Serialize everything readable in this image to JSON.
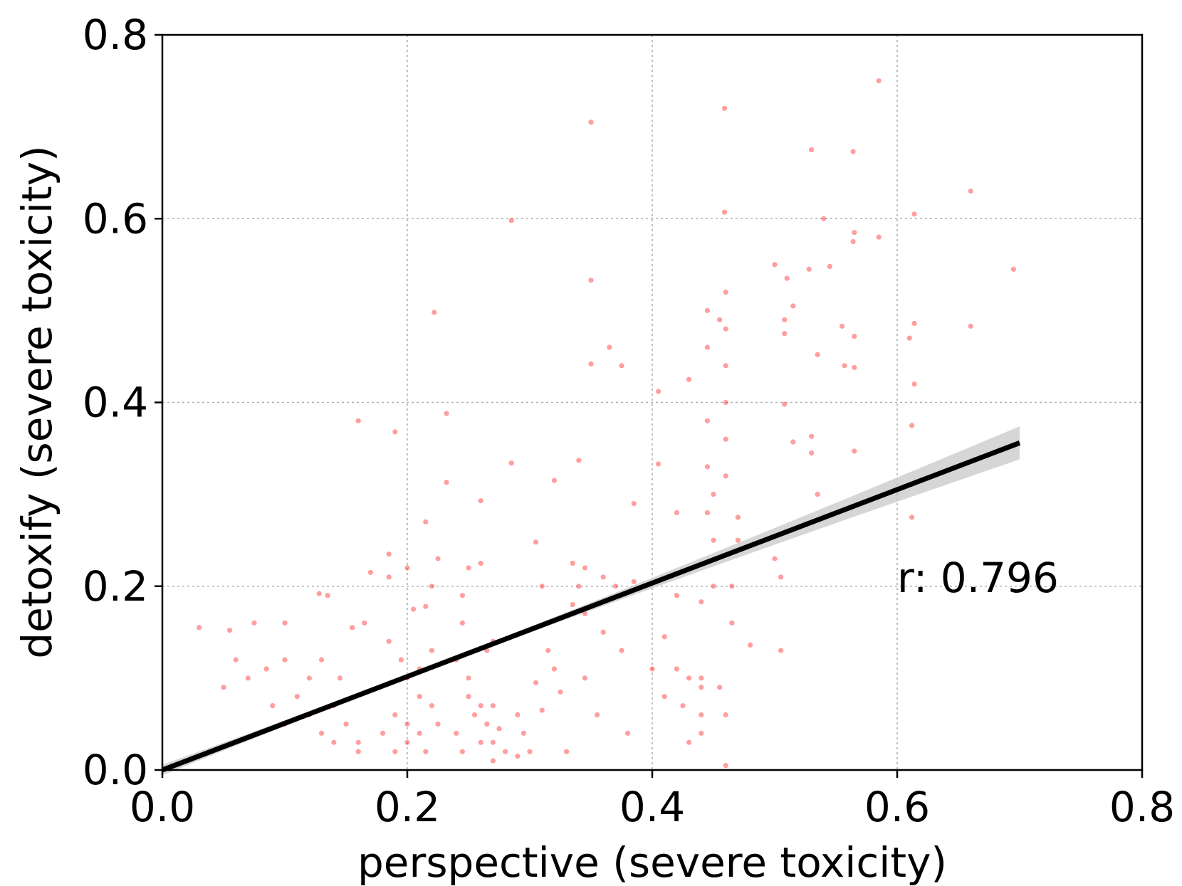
{
  "chart_data": {
    "type": "scatter",
    "title": "",
    "xlabel": "perspective (severe toxicity)",
    "ylabel": "detoxify (severe toxicity)",
    "xlim": [
      0.0,
      0.8
    ],
    "ylim": [
      0.0,
      0.8
    ],
    "xticks": [
      "0.0",
      "0.2",
      "0.4",
      "0.6",
      "0.8"
    ],
    "yticks": [
      "0.0",
      "0.2",
      "0.4",
      "0.6",
      "0.8"
    ],
    "grid": true,
    "point_color": "#ff0000",
    "fit_line_color": "#000000",
    "confidence_band_color": "#c8c8c8",
    "annotation": {
      "text": "r: 0.796",
      "x": 0.6,
      "y": 0.2
    },
    "regression": {
      "x": [
        0.0,
        0.7
      ],
      "y": [
        0.0,
        0.356
      ],
      "ci_halfwidth_at_end": 0.016
    },
    "series": [
      {
        "points": [
          [
            0.585,
            0.75
          ],
          [
            0.459,
            0.72
          ],
          [
            0.35,
            0.705
          ],
          [
            0.285,
            0.598
          ],
          [
            0.66,
            0.63
          ],
          [
            0.614,
            0.605
          ],
          [
            0.459,
            0.607
          ],
          [
            0.53,
            0.675
          ],
          [
            0.564,
            0.673
          ],
          [
            0.54,
            0.6
          ],
          [
            0.565,
            0.585
          ],
          [
            0.585,
            0.58
          ],
          [
            0.564,
            0.575
          ],
          [
            0.695,
            0.545
          ],
          [
            0.5,
            0.55
          ],
          [
            0.51,
            0.535
          ],
          [
            0.528,
            0.545
          ],
          [
            0.545,
            0.548
          ],
          [
            0.35,
            0.533
          ],
          [
            0.222,
            0.498
          ],
          [
            0.515,
            0.505
          ],
          [
            0.508,
            0.49
          ],
          [
            0.508,
            0.475
          ],
          [
            0.614,
            0.486
          ],
          [
            0.66,
            0.483
          ],
          [
            0.555,
            0.483
          ],
          [
            0.565,
            0.472
          ],
          [
            0.61,
            0.47
          ],
          [
            0.535,
            0.452
          ],
          [
            0.557,
            0.44
          ],
          [
            0.565,
            0.438
          ],
          [
            0.365,
            0.46
          ],
          [
            0.375,
            0.44
          ],
          [
            0.35,
            0.442
          ],
          [
            0.43,
            0.425
          ],
          [
            0.405,
            0.412
          ],
          [
            0.614,
            0.42
          ],
          [
            0.16,
            0.38
          ],
          [
            0.19,
            0.368
          ],
          [
            0.232,
            0.388
          ],
          [
            0.508,
            0.398
          ],
          [
            0.515,
            0.357
          ],
          [
            0.612,
            0.375
          ],
          [
            0.53,
            0.363
          ],
          [
            0.565,
            0.347
          ],
          [
            0.53,
            0.345
          ],
          [
            0.405,
            0.333
          ],
          [
            0.285,
            0.334
          ],
          [
            0.34,
            0.337
          ],
          [
            0.32,
            0.315
          ],
          [
            0.232,
            0.313
          ],
          [
            0.535,
            0.3
          ],
          [
            0.612,
            0.275
          ],
          [
            0.26,
            0.293
          ],
          [
            0.385,
            0.29
          ],
          [
            0.42,
            0.28
          ],
          [
            0.47,
            0.275
          ],
          [
            0.215,
            0.27
          ],
          [
            0.305,
            0.248
          ],
          [
            0.335,
            0.225
          ],
          [
            0.225,
            0.23
          ],
          [
            0.26,
            0.225
          ],
          [
            0.25,
            0.22
          ],
          [
            0.2,
            0.22
          ],
          [
            0.185,
            0.235
          ],
          [
            0.17,
            0.215
          ],
          [
            0.185,
            0.21
          ],
          [
            0.22,
            0.2
          ],
          [
            0.245,
            0.19
          ],
          [
            0.205,
            0.175
          ],
          [
            0.215,
            0.178
          ],
          [
            0.135,
            0.19
          ],
          [
            0.128,
            0.192
          ],
          [
            0.155,
            0.155
          ],
          [
            0.165,
            0.16
          ],
          [
            0.075,
            0.16
          ],
          [
            0.1,
            0.16
          ],
          [
            0.055,
            0.152
          ],
          [
            0.03,
            0.155
          ],
          [
            0.245,
            0.16
          ],
          [
            0.27,
            0.14
          ],
          [
            0.265,
            0.13
          ],
          [
            0.385,
            0.205
          ],
          [
            0.42,
            0.19
          ],
          [
            0.44,
            0.183
          ],
          [
            0.48,
            0.136
          ],
          [
            0.505,
            0.13
          ],
          [
            0.41,
            0.145
          ],
          [
            0.42,
            0.11
          ],
          [
            0.425,
            0.07
          ],
          [
            0.41,
            0.08
          ],
          [
            0.4,
            0.11
          ],
          [
            0.43,
            0.1
          ],
          [
            0.44,
            0.09
          ],
          [
            0.38,
            0.04
          ],
          [
            0.43,
            0.03
          ],
          [
            0.44,
            0.04
          ],
          [
            0.455,
            0.09
          ],
          [
            0.44,
            0.1
          ],
          [
            0.5,
            0.23
          ],
          [
            0.505,
            0.21
          ],
          [
            0.33,
            0.02
          ],
          [
            0.305,
            0.095
          ],
          [
            0.31,
            0.065
          ],
          [
            0.325,
            0.085
          ],
          [
            0.295,
            0.04
          ],
          [
            0.27,
            0.03
          ],
          [
            0.28,
            0.02
          ],
          [
            0.29,
            0.015
          ],
          [
            0.255,
            0.06
          ],
          [
            0.26,
            0.03
          ],
          [
            0.245,
            0.02
          ],
          [
            0.31,
            0.2
          ],
          [
            0.335,
            0.18
          ],
          [
            0.315,
            0.13
          ],
          [
            0.32,
            0.11
          ],
          [
            0.29,
            0.06
          ],
          [
            0.275,
            0.045
          ],
          [
            0.3,
            0.02
          ],
          [
            0.265,
            0.05
          ],
          [
            0.345,
            0.22
          ],
          [
            0.345,
            0.17
          ],
          [
            0.345,
            0.1
          ],
          [
            0.355,
            0.06
          ],
          [
            0.34,
            0.2
          ],
          [
            0.36,
            0.21
          ],
          [
            0.37,
            0.2
          ],
          [
            0.36,
            0.15
          ],
          [
            0.375,
            0.13
          ],
          [
            0.45,
            0.3
          ],
          [
            0.45,
            0.25
          ],
          [
            0.45,
            0.2
          ],
          [
            0.445,
            0.33
          ],
          [
            0.445,
            0.28
          ],
          [
            0.465,
            0.2
          ],
          [
            0.465,
            0.16
          ],
          [
            0.47,
            0.25
          ],
          [
            0.46,
            0.32
          ],
          [
            0.46,
            0.36
          ],
          [
            0.46,
            0.4
          ],
          [
            0.445,
            0.38
          ],
          [
            0.46,
            0.44
          ],
          [
            0.445,
            0.46
          ],
          [
            0.46,
            0.48
          ],
          [
            0.445,
            0.5
          ],
          [
            0.46,
            0.52
          ],
          [
            0.455,
            0.49
          ],
          [
            0.44,
            0.06
          ],
          [
            0.46,
            0.06
          ],
          [
            0.46,
            0.005
          ],
          [
            0.05,
            0.09
          ],
          [
            0.06,
            0.12
          ],
          [
            0.07,
            0.1
          ],
          [
            0.09,
            0.07
          ],
          [
            0.1,
            0.05
          ],
          [
            0.11,
            0.08
          ],
          [
            0.12,
            0.06
          ],
          [
            0.13,
            0.04
          ],
          [
            0.14,
            0.07
          ],
          [
            0.15,
            0.05
          ],
          [
            0.16,
            0.03
          ],
          [
            0.12,
            0.1
          ],
          [
            0.1,
            0.12
          ],
          [
            0.085,
            0.11
          ],
          [
            0.13,
            0.12
          ],
          [
            0.145,
            0.1
          ],
          [
            0.14,
            0.03
          ],
          [
            0.16,
            0.02
          ],
          [
            0.18,
            0.04
          ],
          [
            0.19,
            0.06
          ],
          [
            0.2,
            0.05
          ],
          [
            0.21,
            0.04
          ],
          [
            0.19,
            0.02
          ],
          [
            0.2,
            0.03
          ],
          [
            0.21,
            0.08
          ],
          [
            0.2,
            0.1
          ],
          [
            0.195,
            0.12
          ],
          [
            0.185,
            0.14
          ],
          [
            0.21,
            0.11
          ],
          [
            0.22,
            0.13
          ],
          [
            0.22,
            0.07
          ],
          [
            0.215,
            0.02
          ],
          [
            0.225,
            0.05
          ],
          [
            0.24,
            0.04
          ],
          [
            0.25,
            0.08
          ],
          [
            0.25,
            0.1
          ],
          [
            0.26,
            0.07
          ],
          [
            0.27,
            0.07
          ],
          [
            0.27,
            0.01
          ],
          [
            0.24,
            0.12
          ]
        ]
      }
    ]
  }
}
